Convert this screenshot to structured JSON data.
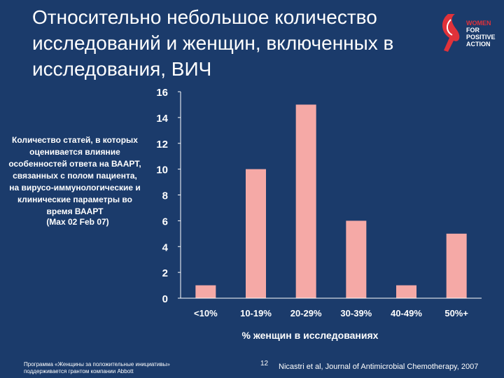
{
  "slide": {
    "title": "Относительно небольшое количество исследований и женщин, включенных в исследования, ВИЧ",
    "logo_lines": [
      "WOMEN",
      "FOR",
      "POSITIVE",
      "ACTION"
    ],
    "side_note": "Количество статей, в которых оценивается влияние особенностей ответа на ВААРТ, связанных с полом пациента, на вирусо-иммунологические и клинические параметры во время ВААРТ",
    "side_note_overlap": "(Max 02 Feb 07)",
    "footer_left_line1": "Программа «Женщины за положительные инициативы»",
    "footer_left_line2": "поддерживается грантом компании Abbott",
    "page_number": "12",
    "citation": "Nicastri et al, Journal of Antimicrobial Chemotherapy, 2007"
  },
  "colors": {
    "background": "#1b3b6b",
    "bar": "#f5a9a6",
    "logo_red": "#e0323a"
  },
  "chart_data": {
    "type": "bar",
    "categories": [
      "<10%",
      "10-19%",
      "20-29%",
      "30-39%",
      "40-49%",
      "50%+"
    ],
    "values": [
      1,
      10,
      15,
      6,
      1,
      5
    ],
    "xlabel": "% женщин в исследованиях",
    "ylabel": "",
    "ylim": [
      0,
      16
    ],
    "yticks": [
      0,
      2,
      4,
      6,
      8,
      10,
      12,
      14,
      16
    ],
    "grid": false
  }
}
